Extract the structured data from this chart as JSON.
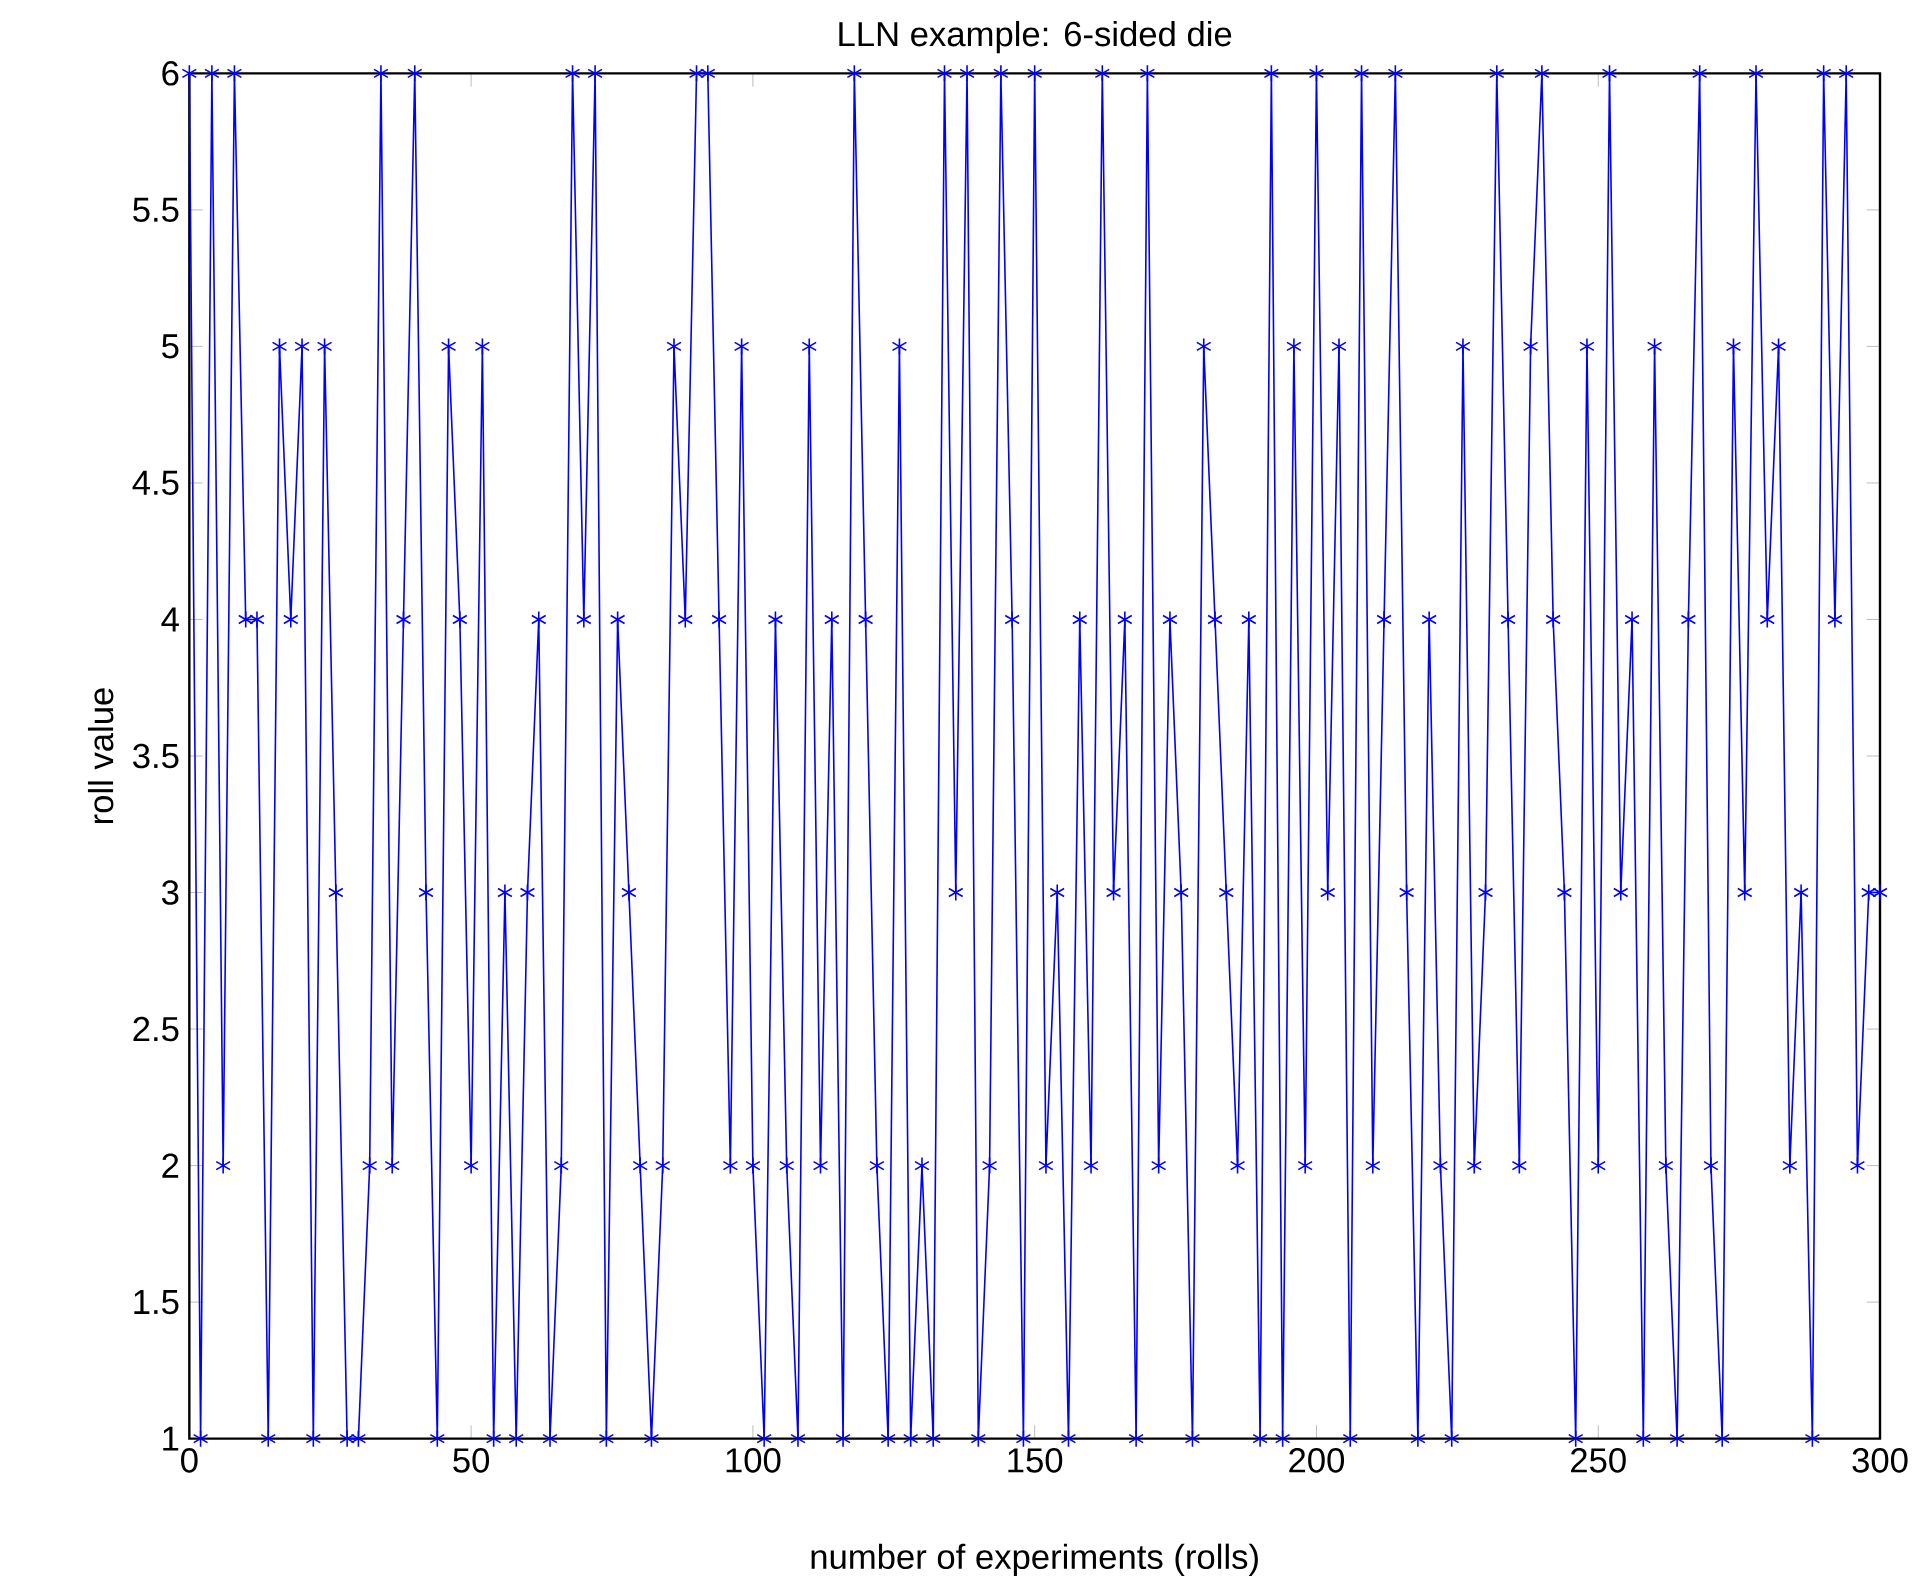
{
  "chart_data": {
    "type": "line",
    "title": "LLN example: 6-sided die",
    "xlabel": "number of experiments (rolls)",
    "ylabel": "roll value",
    "x": [
      0,
      2,
      4,
      6,
      8,
      10,
      12,
      14,
      16,
      18,
      20,
      22,
      24,
      26,
      28,
      30,
      32,
      34,
      36,
      38,
      40,
      42,
      44,
      46,
      48,
      50,
      52,
      54,
      56,
      58,
      60,
      62,
      64,
      66,
      68,
      70,
      72,
      74,
      76,
      78,
      80,
      82,
      84,
      86,
      88,
      90,
      92,
      94,
      96,
      98,
      100,
      102,
      104,
      106,
      108,
      110,
      112,
      114,
      116,
      118,
      120,
      122,
      124,
      126,
      128,
      130,
      132,
      134,
      136,
      138,
      140,
      142,
      144,
      146,
      148,
      150,
      152,
      154,
      156,
      158,
      160,
      162,
      164,
      166,
      168,
      170,
      172,
      174,
      176,
      178,
      180,
      182,
      184,
      186,
      188,
      190,
      192,
      194,
      196,
      198,
      200,
      202,
      204,
      206,
      208,
      210,
      212,
      214,
      216,
      218,
      220,
      222,
      224,
      226,
      228,
      230,
      232,
      234,
      236,
      238,
      240,
      242,
      244,
      246,
      248,
      250,
      252,
      254,
      256,
      258,
      260,
      262,
      264,
      266,
      268,
      270,
      272,
      274,
      276,
      278,
      280,
      282,
      284,
      286,
      288,
      290,
      292,
      294,
      296,
      298,
      300
    ],
    "series": [
      {
        "color": "#0000ff",
        "values": [
          6,
          1,
          6,
          2,
          6,
          4,
          4,
          1,
          5,
          4,
          5,
          1,
          5,
          3,
          1,
          1,
          2,
          6,
          2,
          4,
          6,
          3,
          1,
          5,
          4,
          2,
          5,
          1,
          3,
          1,
          3,
          4,
          1,
          2,
          6,
          4,
          6,
          1,
          4,
          3,
          2,
          1,
          2,
          5,
          4,
          6,
          6,
          4,
          2,
          5,
          2,
          1,
          4,
          2,
          1,
          5,
          2,
          4,
          1,
          6,
          4,
          2,
          1,
          5,
          1,
          2,
          1,
          6,
          3,
          6,
          1,
          2,
          6,
          4,
          1,
          6,
          2,
          3,
          1,
          4,
          2,
          6,
          3,
          4,
          1,
          6,
          2,
          4,
          3,
          1,
          5,
          4,
          3,
          2,
          4,
          1,
          6,
          1,
          5,
          2,
          6,
          3,
          5,
          1,
          6,
          2,
          4,
          6,
          3,
          1,
          4,
          2,
          1,
          5,
          2,
          3,
          6,
          4,
          2,
          5,
          6,
          4,
          3,
          1,
          5,
          2,
          6,
          3,
          4,
          1,
          5,
          2,
          1,
          4,
          6,
          2,
          1,
          5,
          3,
          6,
          4,
          5,
          2,
          3,
          1,
          6,
          4,
          6,
          2,
          3,
          3
        ]
      }
    ],
    "xlim": [
      0,
      300
    ],
    "ylim": [
      1,
      6
    ],
    "xticks": [
      0,
      50,
      100,
      150,
      200,
      250,
      300
    ],
    "yticks": [
      1,
      1.5,
      2,
      2.5,
      3,
      3.5,
      4,
      4.5,
      5,
      5.5,
      6
    ],
    "grid": false,
    "marker": "cross",
    "line_style": "solid"
  }
}
